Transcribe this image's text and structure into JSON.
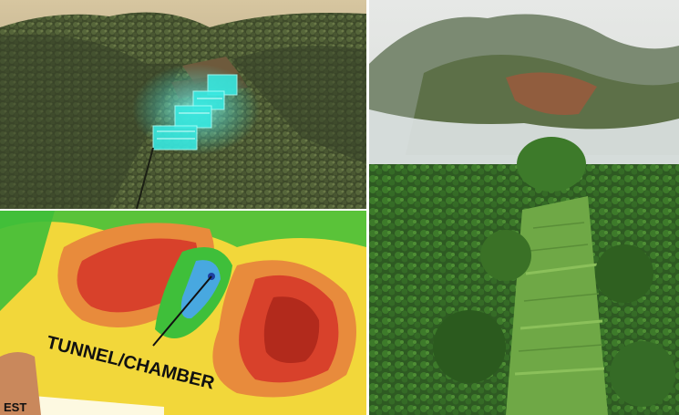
{
  "collage": {
    "panels": [
      {
        "id": "mountain-3d-render"
      },
      {
        "id": "subsurface-scan-map"
      },
      {
        "id": "terraced-hill-aerial"
      }
    ]
  },
  "scan_map": {
    "label_main": "TUNNEL/CHAMBER",
    "label_corner": "EST"
  },
  "colors": {
    "forest_dark": "#2f3a22",
    "forest_mid": "#566b34",
    "cyan_structure": "#38e8e0",
    "scan_yellow": "#f2d73a",
    "scan_red": "#d8412b",
    "scan_green": "#3fbf3a",
    "grass_terrace": "#6fa846",
    "mist": "#dfe4e6"
  }
}
